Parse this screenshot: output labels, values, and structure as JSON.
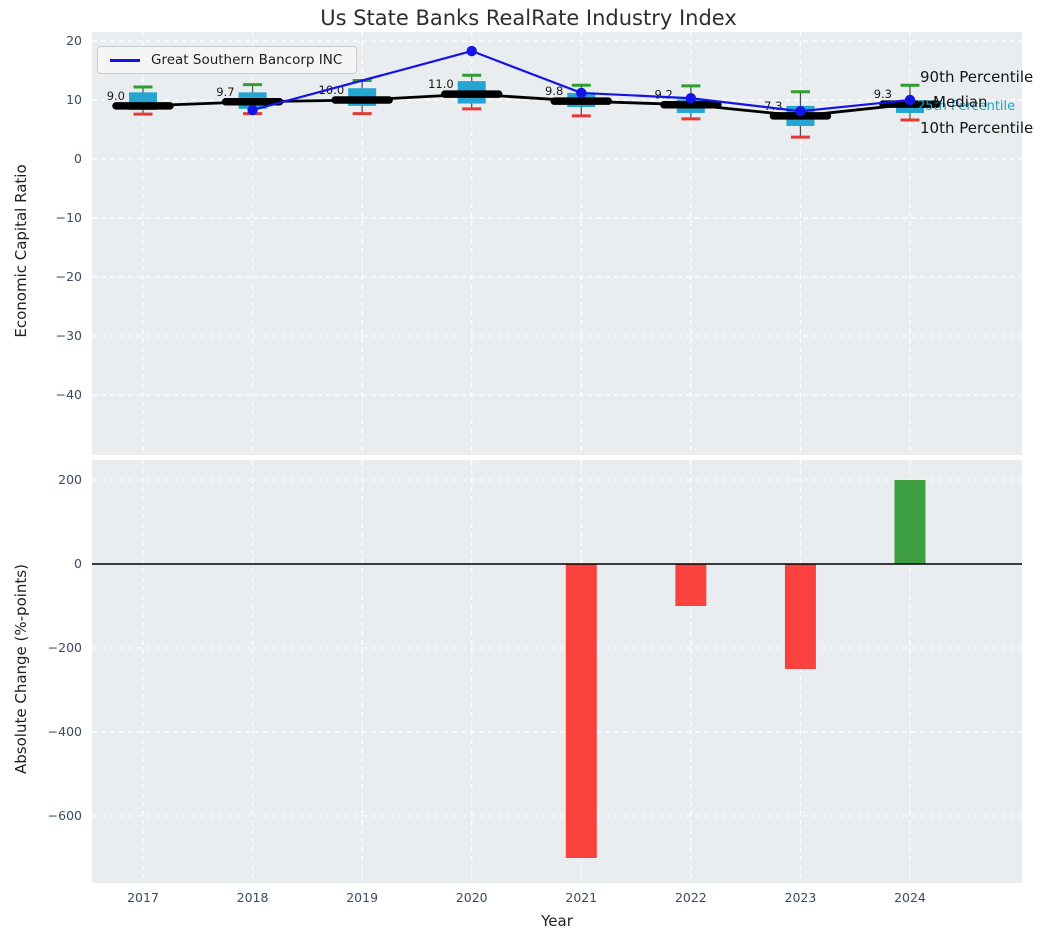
{
  "title": "Us State Banks RealRate Industry Index",
  "legend": {
    "label": "Great Southern Bancorp INC"
  },
  "annotations": {
    "p90": "90th Percentile",
    "median": "Median",
    "p25": "25th Percentile",
    "p10": "10th Percentile"
  },
  "colors": {
    "plot_bg": "#e9edef",
    "grid": "#ffffff",
    "box_fill": "#25a6d2",
    "whisker": "#4d4d4d",
    "cap_high": "#2e9e2e",
    "cap_low": "#e53935",
    "median_line": "#000000",
    "company_line": "#1414e8",
    "bar_positive": "#3d9e42",
    "bar_negative": "#f9423e",
    "tick_text": "#3a4c63",
    "annotation_cyan": "#18a8cc"
  },
  "chart_data": [
    {
      "type": "box",
      "title": "Us State Banks RealRate Industry Index",
      "ylabel": "Economic Capital Ratio",
      "grid": true,
      "legend_position": "upper left",
      "ylim": [
        -50,
        21.5
      ],
      "yticks": [
        20,
        10,
        0,
        -10,
        -20,
        -30,
        -40
      ],
      "categories": [
        "2017",
        "2018",
        "2019",
        "2020",
        "2021",
        "2022",
        "2023",
        "2024"
      ],
      "box_stats": [
        {
          "year": "2017",
          "p90": 12.2,
          "q3": 11.3,
          "median": 9.0,
          "q1": 8.3,
          "p10": 7.6
        },
        {
          "year": "2018",
          "p90": 12.6,
          "q3": 11.3,
          "median": 9.7,
          "q1": 8.5,
          "p10": 7.7
        },
        {
          "year": "2019",
          "p90": 13.3,
          "q3": 12.0,
          "median": 10.0,
          "q1": 9.0,
          "p10": 7.7
        },
        {
          "year": "2020",
          "p90": 14.2,
          "q3": 13.2,
          "median": 11.0,
          "q1": 9.4,
          "p10": 8.5
        },
        {
          "year": "2021",
          "p90": 12.5,
          "q3": 11.2,
          "median": 9.8,
          "q1": 8.8,
          "p10": 7.3
        },
        {
          "year": "2022",
          "p90": 12.4,
          "q3": 10.1,
          "median": 9.2,
          "q1": 7.8,
          "p10": 6.8
        },
        {
          "year": "2023",
          "p90": 11.4,
          "q3": 9.0,
          "median": 7.3,
          "q1": 5.6,
          "p10": 3.7
        },
        {
          "year": "2024",
          "p90": 12.5,
          "q3": 9.5,
          "median": 9.3,
          "q1": 7.8,
          "p10": 6.6
        }
      ],
      "median_labels": [
        "9.0",
        "9.7",
        "10.0",
        "11.0",
        "9.8",
        "9.2",
        "7.3",
        "9.3"
      ],
      "series": [
        {
          "name": "Great Southern Bancorp INC",
          "points": [
            {
              "year": "2018",
              "value": 8.3
            },
            {
              "year": "2020",
              "value": 18.3
            },
            {
              "year": "2021",
              "value": 11.2
            },
            {
              "year": "2022",
              "value": 10.3
            },
            {
              "year": "2023",
              "value": 8.1
            },
            {
              "year": "2024",
              "value": 10.0
            }
          ]
        }
      ]
    },
    {
      "type": "bar",
      "ylabel": "Absolute Change (%-points)",
      "xlabel": "Year",
      "grid": true,
      "ylim": [
        -760,
        248
      ],
      "yticks": [
        200,
        0,
        -200,
        -400,
        -600
      ],
      "categories": [
        "2017",
        "2018",
        "2019",
        "2020",
        "2021",
        "2022",
        "2023",
        "2024"
      ],
      "values": [
        null,
        null,
        null,
        null,
        -700,
        -100,
        -250,
        200
      ],
      "zero_line": 0
    }
  ]
}
